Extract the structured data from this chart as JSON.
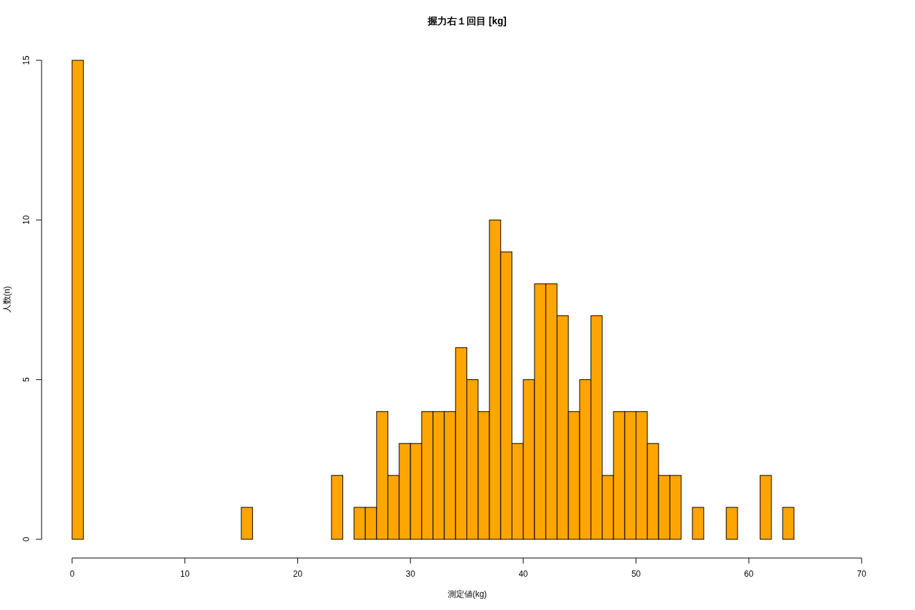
{
  "chart_data": {
    "type": "histogram",
    "title": "握力右１回目 [kg]",
    "xlabel": "測定値(kg)",
    "ylabel": "人数(n)",
    "bins": [
      0,
      1,
      2,
      3,
      4,
      5,
      6,
      7,
      8,
      9,
      10,
      11,
      12,
      13,
      14,
      15,
      16,
      17,
      18,
      19,
      20,
      21,
      22,
      23,
      24,
      25,
      26,
      27,
      28,
      29,
      30,
      31,
      32,
      33,
      34,
      35,
      36,
      37,
      38,
      39,
      40,
      41,
      42,
      43,
      44,
      45,
      46,
      47,
      48,
      49,
      50,
      51,
      52,
      53,
      54,
      55,
      56,
      57,
      58,
      59,
      60,
      61,
      62,
      63,
      64
    ],
    "values": [
      15,
      0,
      0,
      0,
      0,
      0,
      0,
      0,
      0,
      0,
      0,
      0,
      0,
      0,
      0,
      1,
      0,
      0,
      0,
      0,
      0,
      0,
      0,
      2,
      0,
      1,
      1,
      4,
      2,
      3,
      3,
      4,
      4,
      4,
      6,
      5,
      4,
      10,
      9,
      3,
      5,
      8,
      8,
      7,
      4,
      5,
      7,
      2,
      4,
      4,
      4,
      3,
      2,
      2,
      0,
      1,
      0,
      0,
      1,
      0,
      0,
      2,
      0,
      1
    ],
    "color": "#ffa500",
    "xlim": [
      0,
      70
    ],
    "ylim": [
      0,
      15
    ],
    "xticks": [
      0,
      10,
      20,
      30,
      40,
      50,
      60,
      70
    ],
    "yticks": [
      0,
      5,
      10,
      15
    ]
  }
}
